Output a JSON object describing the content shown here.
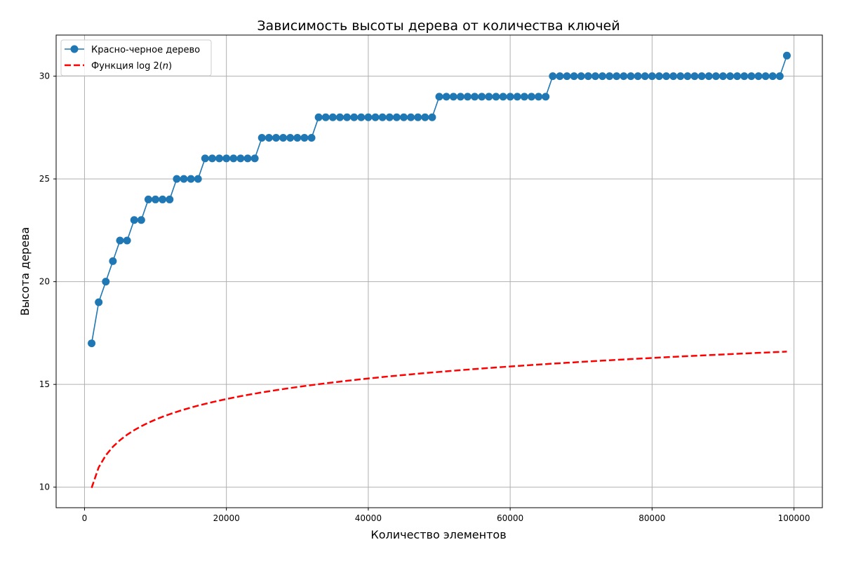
{
  "chart_data": {
    "type": "line",
    "title": "Зависимость высоты дерева от количества ключей",
    "xlabel": "Количество элементов",
    "ylabel": "Высота дерева",
    "xlim": [
      -4000,
      104000
    ],
    "ylim": [
      9.0,
      32.0
    ],
    "xticks": [
      0,
      20000,
      40000,
      60000,
      80000,
      100000
    ],
    "yticks": [
      10,
      15,
      20,
      25,
      30
    ],
    "grid": true,
    "legend_position": "top-left",
    "colors": {
      "tree": "#1f77b4",
      "log": "#ff0000",
      "grid": "#b0b0b0"
    },
    "x": [
      1000,
      2000,
      3000,
      4000,
      5000,
      6000,
      7000,
      8000,
      9000,
      10000,
      11000,
      12000,
      13000,
      14000,
      15000,
      16000,
      17000,
      18000,
      19000,
      20000,
      21000,
      22000,
      23000,
      24000,
      25000,
      26000,
      27000,
      28000,
      29000,
      30000,
      31000,
      32000,
      33000,
      34000,
      35000,
      36000,
      37000,
      38000,
      39000,
      40000,
      41000,
      42000,
      43000,
      44000,
      45000,
      46000,
      47000,
      48000,
      49000,
      50000,
      51000,
      52000,
      53000,
      54000,
      55000,
      56000,
      57000,
      58000,
      59000,
      60000,
      61000,
      62000,
      63000,
      64000,
      65000,
      66000,
      67000,
      68000,
      69000,
      70000,
      71000,
      72000,
      73000,
      74000,
      75000,
      76000,
      77000,
      78000,
      79000,
      80000,
      81000,
      82000,
      83000,
      84000,
      85000,
      86000,
      87000,
      88000,
      89000,
      90000,
      91000,
      92000,
      93000,
      94000,
      95000,
      96000,
      97000,
      98000,
      99000
    ],
    "series": [
      {
        "name": "Красно-черное дерево",
        "style": "solid-marker",
        "values": [
          17,
          19,
          20,
          21,
          22,
          22,
          23,
          23,
          24,
          24,
          24,
          24,
          25,
          25,
          25,
          25,
          26,
          26,
          26,
          26,
          26,
          26,
          26,
          26,
          27,
          27,
          27,
          27,
          27,
          27,
          27,
          27,
          28,
          28,
          28,
          28,
          28,
          28,
          28,
          28,
          28,
          28,
          28,
          28,
          28,
          28,
          28,
          28,
          28,
          29,
          29,
          29,
          29,
          29,
          29,
          29,
          29,
          29,
          29,
          29,
          29,
          29,
          29,
          29,
          29,
          30,
          30,
          30,
          30,
          30,
          30,
          30,
          30,
          30,
          30,
          30,
          30,
          30,
          30,
          30,
          30,
          30,
          30,
          30,
          30,
          30,
          30,
          30,
          30,
          30,
          30,
          30,
          30,
          30,
          30,
          30,
          30,
          30,
          31
        ]
      },
      {
        "name": "Функция log2(n)",
        "legend_prefix": "Функция ",
        "legend_math": "log 2(",
        "legend_var": "n",
        "legend_suffix": ")",
        "style": "dashed",
        "function": "log2"
      }
    ]
  }
}
